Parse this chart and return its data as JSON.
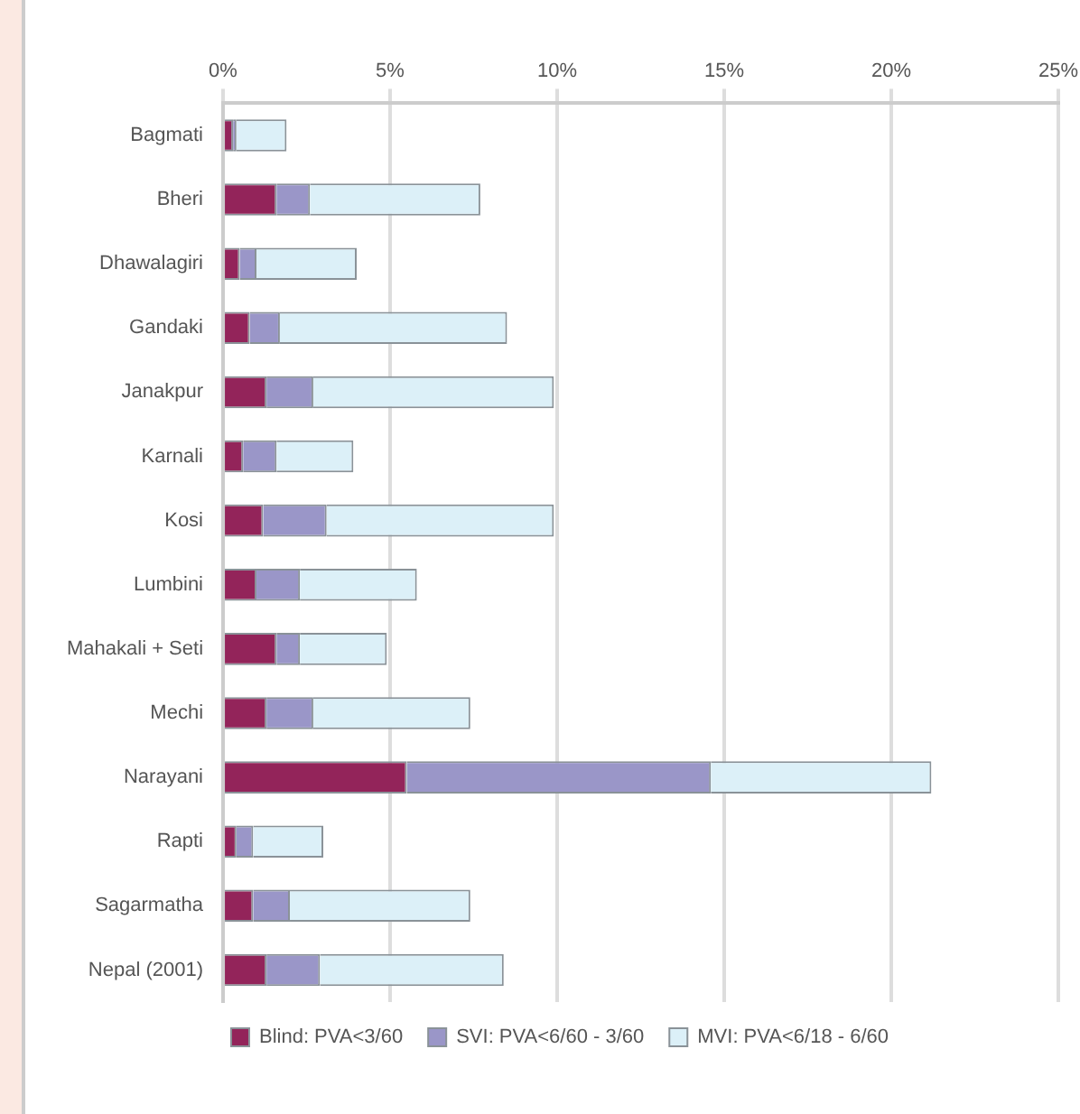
{
  "chart_data": {
    "type": "bar",
    "orientation": "horizontal",
    "stacked": true,
    "categories": [
      "Bagmati",
      "Bheri",
      "Dhawalagiri",
      "Gandaki",
      "Janakpur",
      "Karnali",
      "Kosi",
      "Lumbini",
      "Mahakali + Seti",
      "Mechi",
      "Narayani",
      "Rapti",
      "Sagarmatha",
      "Nepal (2001)"
    ],
    "series": [
      {
        "name": "Blind: PVA<3/60",
        "color": "#93245a",
        "values": [
          0.3,
          1.6,
          0.5,
          0.8,
          1.3,
          0.6,
          1.2,
          1.0,
          1.6,
          1.3,
          5.5,
          0.4,
          0.9,
          1.3
        ]
      },
      {
        "name": "SVI: PVA<6/60 - 3/60",
        "color": "#9a96c8",
        "values": [
          0.1,
          1.0,
          0.5,
          0.9,
          1.4,
          1.0,
          1.9,
          1.3,
          0.7,
          1.4,
          9.1,
          0.5,
          1.1,
          1.6
        ]
      },
      {
        "name": "MVI: PVA<6/18 - 6/60",
        "color": "#dcf0f8",
        "values": [
          1.5,
          5.1,
          3.0,
          6.8,
          7.2,
          2.3,
          6.8,
          3.5,
          2.6,
          4.7,
          6.6,
          2.1,
          5.4,
          5.5
        ]
      }
    ],
    "xlim": [
      0,
      25
    ],
    "xticks": [
      {
        "value": 0,
        "label": "0%"
      },
      {
        "value": 5,
        "label": "5%"
      },
      {
        "value": 10,
        "label": "10%"
      },
      {
        "value": 15,
        "label": "15%"
      },
      {
        "value": 20,
        "label": "20%"
      },
      {
        "value": 25,
        "label": "25%"
      }
    ],
    "grid": "x",
    "legend": "bottom"
  }
}
